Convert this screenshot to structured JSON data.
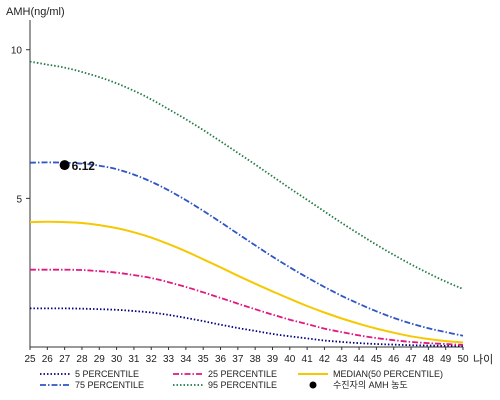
{
  "chart_data": {
    "type": "line",
    "ylabel": "AMH(ng/ml)",
    "xlabel": "나이",
    "xlim": [
      25,
      50
    ],
    "ylim": [
      0,
      11
    ],
    "yticks": [
      5,
      10
    ],
    "x": [
      25,
      26,
      27,
      28,
      29,
      30,
      31,
      32,
      33,
      34,
      35,
      36,
      37,
      38,
      39,
      40,
      41,
      42,
      43,
      44,
      45,
      46,
      47,
      48,
      49,
      50
    ],
    "x_tick_labels": [
      "25",
      "26",
      "27",
      "28",
      "29",
      "30",
      "31",
      "32",
      "33",
      "34",
      "35",
      "36",
      "37",
      "38",
      "39",
      "40",
      "41",
      "42",
      "43",
      "44",
      "45",
      "46",
      "47",
      "48",
      "49",
      "50"
    ],
    "series": [
      {
        "name": "5 PERCENTILE",
        "color": "#000080",
        "style": "dotted",
        "values": [
          1.3,
          1.3,
          1.3,
          1.29,
          1.27,
          1.25,
          1.21,
          1.16,
          1.08,
          0.98,
          0.87,
          0.75,
          0.64,
          0.54,
          0.44,
          0.36,
          0.29,
          0.22,
          0.17,
          0.13,
          0.1,
          0.08,
          0.06,
          0.05,
          0.04,
          0.03
        ]
      },
      {
        "name": "25 PERCENTILE",
        "color": "#e0187f",
        "style": "dashdot",
        "values": [
          2.6,
          2.6,
          2.6,
          2.59,
          2.55,
          2.5,
          2.42,
          2.32,
          2.18,
          2.02,
          1.84,
          1.65,
          1.46,
          1.27,
          1.09,
          0.92,
          0.77,
          0.62,
          0.5,
          0.39,
          0.3,
          0.23,
          0.17,
          0.13,
          0.1,
          0.07
        ]
      },
      {
        "name": "MEDIAN(50 PERCENTILE)",
        "color": "#f5c800",
        "style": "solid",
        "values": [
          4.2,
          4.21,
          4.2,
          4.17,
          4.1,
          4.0,
          3.86,
          3.68,
          3.46,
          3.22,
          2.95,
          2.68,
          2.4,
          2.13,
          1.87,
          1.62,
          1.38,
          1.16,
          0.96,
          0.78,
          0.62,
          0.48,
          0.36,
          0.27,
          0.2,
          0.15
        ]
      },
      {
        "name": "75 PERCENTILE",
        "color": "#2e56c6",
        "style": "dashdot",
        "values": [
          6.2,
          6.21,
          6.2,
          6.17,
          6.1,
          5.98,
          5.8,
          5.56,
          5.27,
          4.94,
          4.58,
          4.2,
          3.81,
          3.42,
          3.04,
          2.68,
          2.34,
          2.02,
          1.72,
          1.45,
          1.2,
          0.98,
          0.79,
          0.63,
          0.5,
          0.38
        ]
      },
      {
        "name": "95 PERCENTILE",
        "color": "#1f7a45",
        "style": "dotted",
        "values": [
          9.6,
          9.5,
          9.4,
          9.25,
          9.08,
          8.87,
          8.62,
          8.33,
          8.0,
          7.66,
          7.3,
          6.92,
          6.53,
          6.14,
          5.74,
          5.34,
          4.95,
          4.56,
          4.17,
          3.8,
          3.44,
          3.1,
          2.78,
          2.48,
          2.2,
          1.95
        ]
      }
    ],
    "highlight_point": {
      "name": "수진자의 AMH 농도",
      "x": 27,
      "y": 6.12,
      "label": "6.12",
      "color": "#000000"
    },
    "legend_placement": "bottom",
    "grid": false
  }
}
